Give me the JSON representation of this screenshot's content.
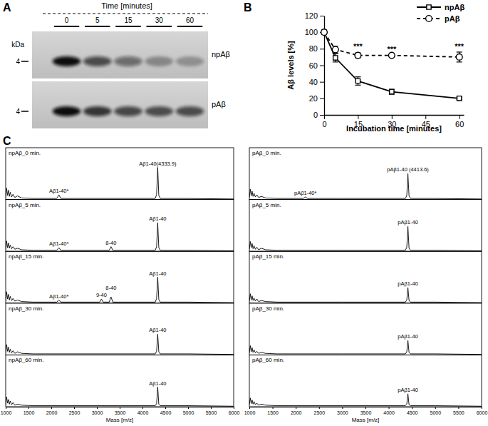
{
  "chart_data": [
    {
      "type": "blot",
      "panel_label": "A",
      "x_label": "Time [minutes]",
      "y_label": "kDa",
      "categories": [
        "0",
        "5",
        "15",
        "30",
        "60"
      ],
      "series": [
        {
          "name": "npAβ",
          "color": "#111111",
          "size_marker": 4,
          "values": [
            1.0,
            0.68,
            0.5,
            0.32,
            0.28
          ]
        },
        {
          "name": "pAβ",
          "color": "#111111",
          "size_marker": 4,
          "values": [
            1.0,
            0.8,
            0.7,
            0.68,
            0.68
          ]
        }
      ]
    },
    {
      "type": "line",
      "panel_label": "B",
      "x_label": "Incubation time [minutes]",
      "y_label": "Aβ levels [%]",
      "x": [
        0,
        5,
        15,
        30,
        60
      ],
      "xlim": [
        0,
        62
      ],
      "xticks": [
        0,
        15,
        30,
        45,
        60
      ],
      "ylim": [
        0,
        120
      ],
      "yticks": [
        0,
        20,
        40,
        60,
        80,
        100,
        120
      ],
      "legend": "upper right",
      "series": [
        {
          "name": "npAβ",
          "color": "#000000",
          "marker": "square",
          "line_style": "solid",
          "values": [
            100,
            69,
            41,
            28,
            20
          ],
          "errors": [
            0,
            5,
            5,
            3,
            1.5
          ]
        },
        {
          "name": "pAβ",
          "color": "#000000",
          "marker": "circle",
          "line_style": "dashed",
          "values": [
            100,
            79,
            72,
            72,
            70
          ],
          "errors": [
            0,
            4,
            3,
            1,
            6
          ]
        }
      ],
      "annotations": [
        {
          "text": "***",
          "x": 15,
          "y": 79
        },
        {
          "text": "***",
          "x": 30,
          "y": 76
        },
        {
          "text": "***",
          "x": 60,
          "y": 79
        }
      ]
    },
    {
      "type": "spectrum",
      "panel_label": "C",
      "title": "npAβ_0 min.",
      "color": "#000000",
      "xlim": [
        1000,
        6000
      ],
      "ylim": [
        0,
        100
      ],
      "tick_labels": false,
      "x": [
        1000,
        1020,
        1040,
        1060,
        1080,
        1100,
        1130,
        1160,
        1200,
        1260,
        1350,
        1600,
        2120,
        2167,
        2210,
        3000,
        4280,
        4310,
        4334,
        4358,
        4390,
        5000,
        6000
      ],
      "values": [
        4,
        22,
        8,
        18,
        6,
        14,
        5,
        10,
        4,
        7,
        3,
        2,
        2,
        9,
        2,
        2,
        2,
        10,
        62,
        8,
        2,
        2,
        1
      ],
      "annotations": [
        {
          "text": "Aβ1-40*",
          "x": 2167,
          "y": 13
        },
        {
          "text": "Aβ1-40(4333.9)",
          "x": 4334,
          "y": 66
        }
      ]
    },
    {
      "type": "spectrum",
      "title": "npAβ_5 min.",
      "color": "#000000",
      "xlim": [
        1000,
        6000
      ],
      "ylim": [
        0,
        100
      ],
      "tick_labels": false,
      "x": [
        1000,
        1020,
        1040,
        1060,
        1080,
        1100,
        1130,
        1160,
        1200,
        1260,
        1350,
        1600,
        2120,
        2167,
        2210,
        3270,
        3310,
        3350,
        4280,
        4310,
        4334,
        4358,
        4390,
        5000,
        6000
      ],
      "values": [
        4,
        20,
        7,
        16,
        6,
        12,
        5,
        9,
        4,
        6,
        3,
        2,
        2,
        7,
        2,
        2,
        9,
        2,
        2,
        9,
        55,
        7,
        2,
        2,
        1
      ],
      "annotations": [
        {
          "text": "Aβ1-40*",
          "x": 2167,
          "y": 11
        },
        {
          "text": "8-40",
          "x": 3310,
          "y": 13
        },
        {
          "text": "Aβ1-40",
          "x": 4334,
          "y": 59
        }
      ]
    },
    {
      "type": "spectrum",
      "title": "npAβ_15 min.",
      "color": "#000000",
      "xlim": [
        1000,
        6000
      ],
      "ylim": [
        0,
        100
      ],
      "tick_labels": false,
      "x": [
        1000,
        1020,
        1040,
        1060,
        1080,
        1100,
        1130,
        1160,
        1200,
        1260,
        1350,
        1600,
        2120,
        2167,
        2210,
        3060,
        3100,
        3140,
        3270,
        3310,
        3350,
        4280,
        4310,
        4334,
        4358,
        4390,
        5000,
        6000
      ],
      "values": [
        4,
        22,
        8,
        17,
        6,
        13,
        5,
        9,
        4,
        6,
        3,
        2,
        2,
        6,
        2,
        2,
        8,
        2,
        2,
        12,
        2,
        2,
        9,
        50,
        7,
        2,
        2,
        1
      ],
      "annotations": [
        {
          "text": "Aβ1-40*",
          "x": 2167,
          "y": 10
        },
        {
          "text": "9-40",
          "x": 3100,
          "y": 12
        },
        {
          "text": "8-40",
          "x": 3310,
          "y": 26
        },
        {
          "text": "Aβ1-40",
          "x": 4334,
          "y": 54
        }
      ]
    },
    {
      "type": "spectrum",
      "title": "npAβ_30 min.",
      "color": "#000000",
      "xlim": [
        1000,
        6000
      ],
      "ylim": [
        0,
        100
      ],
      "tick_labels": false,
      "x": [
        1000,
        1020,
        1040,
        1060,
        1080,
        1100,
        1130,
        1160,
        1200,
        1260,
        1350,
        1600,
        3000,
        4280,
        4310,
        4334,
        4358,
        4390,
        5000,
        6000
      ],
      "values": [
        4,
        20,
        7,
        15,
        5,
        11,
        4,
        8,
        3,
        6,
        3,
        2,
        2,
        2,
        7,
        40,
        6,
        2,
        2,
        1
      ],
      "annotations": [
        {
          "text": "Aβ1-40",
          "x": 4334,
          "y": 44
        }
      ]
    },
    {
      "type": "spectrum",
      "title": "npAβ_60 min.",
      "color": "#000000",
      "xlim": [
        1000,
        6000
      ],
      "ylim": [
        0,
        100
      ],
      "tick_labels": "x",
      "xticks": [
        1000,
        1500,
        2000,
        2500,
        3000,
        3500,
        4000,
        4500,
        5000,
        5500,
        6000
      ],
      "x_label": "Mass [m/z]",
      "x": [
        1000,
        1020,
        1040,
        1060,
        1080,
        1100,
        1130,
        1160,
        1200,
        1260,
        1350,
        1600,
        3000,
        4280,
        4310,
        4334,
        4358,
        4390,
        5000,
        6000
      ],
      "values": [
        4,
        19,
        7,
        14,
        5,
        11,
        4,
        8,
        3,
        5,
        3,
        2,
        2,
        2,
        6,
        38,
        5,
        2,
        2,
        1
      ],
      "annotations": [
        {
          "text": "Aβ1-40",
          "x": 4334,
          "y": 42
        }
      ]
    },
    {
      "type": "spectrum",
      "title": "pAβ_0 min.",
      "color": "#000000",
      "xlim": [
        1000,
        6000
      ],
      "ylim": [
        0,
        100
      ],
      "tick_labels": false,
      "x": [
        1000,
        1020,
        1040,
        1060,
        1080,
        1100,
        1130,
        1160,
        1200,
        1260,
        1350,
        1600,
        2160,
        2207,
        2250,
        3000,
        4360,
        4390,
        4414,
        4438,
        4470,
        5000,
        6000
      ],
      "values": [
        4,
        20,
        7,
        16,
        6,
        12,
        5,
        9,
        4,
        6,
        3,
        2,
        2,
        5,
        2,
        2,
        2,
        8,
        50,
        7,
        2,
        2,
        1
      ],
      "annotations": [
        {
          "text": "pAβ1-40*",
          "x": 2207,
          "y": 9
        },
        {
          "text": "pAβ1-40 (4413.6)",
          "x": 4414,
          "y": 54
        }
      ]
    },
    {
      "type": "spectrum",
      "title": "pAβ_5 min.",
      "color": "#000000",
      "xlim": [
        1000,
        6000
      ],
      "ylim": [
        0,
        100
      ],
      "tick_labels": false,
      "x": [
        1000,
        1020,
        1040,
        1060,
        1080,
        1100,
        1130,
        1160,
        1200,
        1260,
        1350,
        1600,
        3000,
        4360,
        4390,
        4414,
        4438,
        4470,
        5000,
        6000
      ],
      "values": [
        4,
        19,
        7,
        15,
        5,
        11,
        4,
        8,
        3,
        6,
        3,
        2,
        2,
        2,
        8,
        48,
        6,
        2,
        2,
        1
      ],
      "annotations": [
        {
          "text": "pAβ1-40",
          "x": 4414,
          "y": 52
        }
      ]
    },
    {
      "type": "spectrum",
      "title": "pAβ_15 min.",
      "color": "#000000",
      "xlim": [
        1000,
        6000
      ],
      "ylim": [
        0,
        100
      ],
      "tick_labels": false,
      "x": [
        1000,
        1020,
        1040,
        1060,
        1080,
        1100,
        1130,
        1160,
        1200,
        1260,
        1350,
        1600,
        3000,
        4360,
        4390,
        4414,
        4438,
        4470,
        5000,
        6000
      ],
      "values": [
        4,
        18,
        6,
        14,
        5,
        10,
        4,
        8,
        3,
        5,
        3,
        2,
        2,
        2,
        6,
        30,
        5,
        2,
        2,
        1
      ],
      "annotations": [
        {
          "text": "pAβ1-40",
          "x": 4414,
          "y": 34
        }
      ]
    },
    {
      "type": "spectrum",
      "title": "pAβ_30 min.",
      "color": "#000000",
      "xlim": [
        1000,
        6000
      ],
      "ylim": [
        0,
        100
      ],
      "tick_labels": false,
      "x": [
        1000,
        1020,
        1040,
        1060,
        1080,
        1100,
        1130,
        1160,
        1200,
        1260,
        1350,
        1600,
        3000,
        4360,
        4390,
        4414,
        4438,
        4470,
        5000,
        6000
      ],
      "values": [
        4,
        18,
        6,
        14,
        5,
        10,
        4,
        7,
        3,
        5,
        3,
        2,
        2,
        2,
        6,
        28,
        5,
        2,
        2,
        1
      ],
      "annotations": [
        {
          "text": "pAβ1-40",
          "x": 4414,
          "y": 32
        }
      ]
    },
    {
      "type": "spectrum",
      "title": "pAβ_60 min.",
      "color": "#000000",
      "xlim": [
        1000,
        6000
      ],
      "ylim": [
        0,
        100
      ],
      "tick_labels": "x",
      "xticks": [
        1000,
        1500,
        2000,
        2500,
        3000,
        3500,
        4000,
        4500,
        5000,
        5500,
        6000
      ],
      "x_label": "Mass [m/z]",
      "x": [
        1000,
        1020,
        1040,
        1060,
        1080,
        1100,
        1130,
        1160,
        1200,
        1260,
        1350,
        1600,
        3000,
        4360,
        4390,
        4414,
        4438,
        4470,
        5000,
        6000
      ],
      "values": [
        4,
        17,
        6,
        13,
        5,
        10,
        4,
        7,
        3,
        5,
        3,
        2,
        2,
        2,
        5,
        25,
        4,
        2,
        2,
        1
      ],
      "annotations": [
        {
          "text": "pAβ1-40",
          "x": 4414,
          "y": 29
        }
      ]
    }
  ]
}
